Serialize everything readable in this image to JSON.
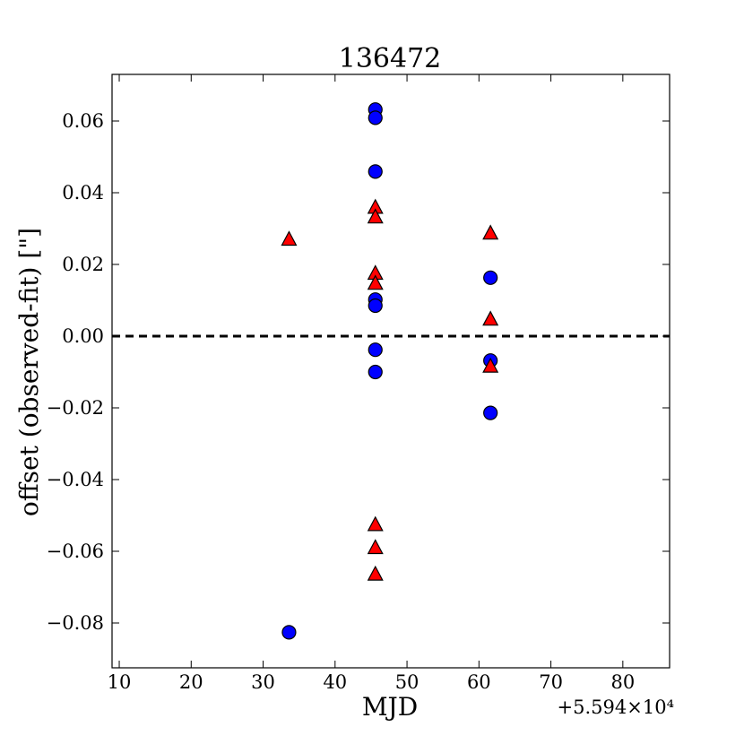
{
  "chart_data": {
    "type": "scatter",
    "title": "136472",
    "xlabel": "MJD",
    "ylabel": "offset (observed-fit) [\"]",
    "x_offset_label": "+5.594×10⁴",
    "xlim": [
      9,
      86.5
    ],
    "ylim": [
      -0.0925,
      0.073
    ],
    "xticks": [
      10,
      20,
      30,
      40,
      50,
      60,
      70,
      80
    ],
    "xtick_labels": [
      "10",
      "20",
      "30",
      "40",
      "50",
      "60",
      "70",
      "80"
    ],
    "yticks": [
      0.06,
      0.04,
      0.02,
      0.0,
      -0.02,
      -0.04,
      -0.06,
      -0.08
    ],
    "ytick_labels": [
      "0.06",
      "0.04",
      "0.02",
      "0.00",
      "−0.02",
      "−0.04",
      "−0.06",
      "−0.08"
    ],
    "grid": false,
    "reference_line": {
      "y": 0.0,
      "style": "dashed",
      "color": "#000000"
    },
    "series": [
      {
        "marker": "circle",
        "color": "#0000ff",
        "points": [
          {
            "x": 33.6,
            "y": -0.0826
          },
          {
            "x": 45.6,
            "y": 0.0632
          },
          {
            "x": 45.6,
            "y": 0.0609
          },
          {
            "x": 45.6,
            "y": 0.0459
          },
          {
            "x": 45.6,
            "y": 0.0102
          },
          {
            "x": 45.6,
            "y": 0.0085
          },
          {
            "x": 45.6,
            "y": -0.0038
          },
          {
            "x": 45.6,
            "y": -0.01
          },
          {
            "x": 61.6,
            "y": 0.0163
          },
          {
            "x": 61.6,
            "y": -0.0068
          },
          {
            "x": 61.6,
            "y": -0.0214
          }
        ]
      },
      {
        "marker": "triangle",
        "color": "#ff0000",
        "points": [
          {
            "x": 33.6,
            "y": 0.0268
          },
          {
            "x": 45.6,
            "y": 0.0357
          },
          {
            "x": 45.6,
            "y": 0.033
          },
          {
            "x": 45.6,
            "y": 0.0173
          },
          {
            "x": 45.6,
            "y": 0.0145
          },
          {
            "x": 45.6,
            "y": -0.0528
          },
          {
            "x": 45.6,
            "y": -0.0592
          },
          {
            "x": 45.6,
            "y": -0.0666
          },
          {
            "x": 61.6,
            "y": 0.0285
          },
          {
            "x": 61.6,
            "y": 0.0045
          },
          {
            "x": 61.6,
            "y": -0.0086
          }
        ]
      }
    ]
  }
}
